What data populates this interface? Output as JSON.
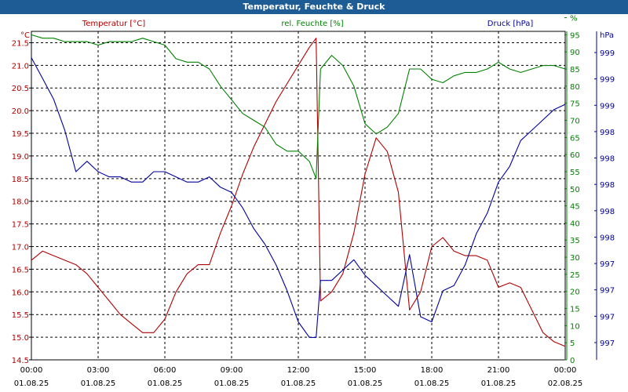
{
  "chart_data": {
    "type": "line",
    "title": "Temperatur, Feuchte & Druck",
    "x_ticks": [
      {
        "time": "00:00",
        "date": "01.08.25"
      },
      {
        "time": "03:00",
        "date": "01.08.25"
      },
      {
        "time": "06:00",
        "date": "01.08.25"
      },
      {
        "time": "09:00",
        "date": "01.08.25"
      },
      {
        "time": "12:00",
        "date": "01.08.25"
      },
      {
        "time": "15:00",
        "date": "01.08.25"
      },
      {
        "time": "18:00",
        "date": "01.08.25"
      },
      {
        "time": "21:00",
        "date": "01.08.25"
      },
      {
        "time": "00:00",
        "date": "02.08.25"
      }
    ],
    "axes": {
      "temperature": {
        "label": "Temperatur [°C]",
        "unit": "°C",
        "color": "#b00000",
        "ylim": [
          14.5,
          21.75
        ],
        "ticks": [
          "14.5",
          "15.0",
          "15.5",
          "16.0",
          "16.5",
          "17.0",
          "17.5",
          "18.0",
          "18.5",
          "19.0",
          "19.5",
          "20.0",
          "20.5",
          "21.0",
          "21.5"
        ]
      },
      "humidity": {
        "label": "rel. Feuchte [%]",
        "unit": "%",
        "color": "#008000",
        "ylim": [
          0,
          96
        ],
        "ticks": [
          "0",
          "5",
          "10",
          "15",
          "20",
          "25",
          "30",
          "35",
          "40",
          "45",
          "50",
          "55",
          "60",
          "65",
          "70",
          "75",
          "80",
          "85",
          "90",
          "95",
          "%"
        ]
      },
      "pressure": {
        "label": "Druck [hPa]",
        "unit": "hPa",
        "color": "#0000a0",
        "ticks": [
          "997",
          "997",
          "997",
          "997",
          "998",
          "998",
          "998",
          "998",
          "998",
          "999",
          "999",
          "999"
        ]
      }
    },
    "series": [
      {
        "name": "Temperatur [°C]",
        "axis": "temperature",
        "color": "#b00000",
        "hours": [
          0,
          0.5,
          1,
          1.5,
          2,
          2.5,
          3,
          3.5,
          4,
          4.5,
          5,
          5.5,
          6,
          6.5,
          7,
          7.5,
          8,
          8.5,
          9,
          9.5,
          10,
          10.5,
          11,
          11.5,
          12,
          12.5,
          12.8,
          13,
          13.5,
          14,
          14.5,
          15,
          15.5,
          16,
          16.5,
          17,
          17.5,
          18,
          18.5,
          19,
          19.5,
          20,
          20.5,
          21,
          21.5,
          22,
          22.5,
          23,
          23.5,
          24
        ],
        "values": [
          16.7,
          16.9,
          16.8,
          16.7,
          16.6,
          16.4,
          16.1,
          15.8,
          15.5,
          15.3,
          15.1,
          15.1,
          15.4,
          16.0,
          16.4,
          16.6,
          16.6,
          17.3,
          17.9,
          18.6,
          19.2,
          19.7,
          20.2,
          20.6,
          21.0,
          21.4,
          21.6,
          15.8,
          16.0,
          16.4,
          17.3,
          18.6,
          19.4,
          19.1,
          18.2,
          15.6,
          16.0,
          17.0,
          17.2,
          16.9,
          16.8,
          16.8,
          16.7,
          16.1,
          16.2,
          16.1,
          15.6,
          15.1,
          14.9,
          14.8
        ]
      },
      {
        "name": "rel. Feuchte [%]",
        "axis": "humidity",
        "color": "#008000",
        "hours": [
          0,
          0.5,
          1,
          1.5,
          2,
          2.5,
          3,
          3.5,
          4,
          4.5,
          5,
          5.5,
          6,
          6.5,
          7,
          7.5,
          8,
          8.5,
          9,
          9.5,
          10,
          10.5,
          11,
          11.5,
          12,
          12.5,
          12.8,
          13,
          13.5,
          14,
          14.5,
          15,
          15.5,
          16,
          16.5,
          17,
          17.5,
          18,
          18.5,
          19,
          19.5,
          20,
          20.5,
          21,
          21.5,
          22,
          22.5,
          23,
          23.5,
          24
        ],
        "values": [
          95,
          94,
          94,
          93,
          93,
          93,
          92,
          93,
          93,
          93,
          94,
          93,
          92,
          88,
          87,
          87,
          85,
          80,
          76,
          72,
          70,
          68,
          63,
          61,
          61,
          58,
          53,
          85,
          89,
          86,
          80,
          69,
          66,
          68,
          72,
          85,
          85,
          82,
          81,
          83,
          84,
          84,
          85,
          87,
          85,
          84,
          85,
          86,
          86,
          85
        ]
      },
      {
        "name": "Druck [hPa]",
        "axis": "pressure",
        "color": "#0000a0",
        "hours": [
          0,
          0.5,
          1,
          1.5,
          2,
          2.5,
          3,
          3.5,
          4,
          4.5,
          5,
          5.5,
          6,
          6.5,
          7,
          7.5,
          8,
          8.5,
          9,
          9.5,
          10,
          10.5,
          11,
          11.5,
          12,
          12.5,
          12.8,
          13,
          13.5,
          14,
          14.5,
          15,
          15.5,
          16,
          16.5,
          17,
          17.5,
          18,
          18.5,
          19,
          19.5,
          20,
          20.5,
          21,
          21.5,
          22,
          22.5,
          23,
          23.5,
          24
        ],
        "values": [
          999.1,
          998.9,
          998.7,
          998.4,
          998.0,
          998.1,
          998.0,
          997.95,
          997.95,
          997.9,
          997.9,
          998.0,
          998.0,
          997.95,
          997.9,
          997.9,
          997.95,
          997.85,
          997.8,
          997.65,
          997.45,
          997.3,
          997.1,
          996.85,
          996.55,
          996.4,
          996.4,
          996.95,
          996.95,
          997.05,
          997.15,
          997.0,
          996.9,
          996.8,
          996.7,
          997.2,
          996.6,
          996.55,
          996.85,
          996.9,
          997.1,
          997.4,
          997.6,
          997.9,
          998.05,
          998.3,
          998.4,
          998.5,
          998.6,
          998.65
        ]
      }
    ],
    "grid": true
  }
}
